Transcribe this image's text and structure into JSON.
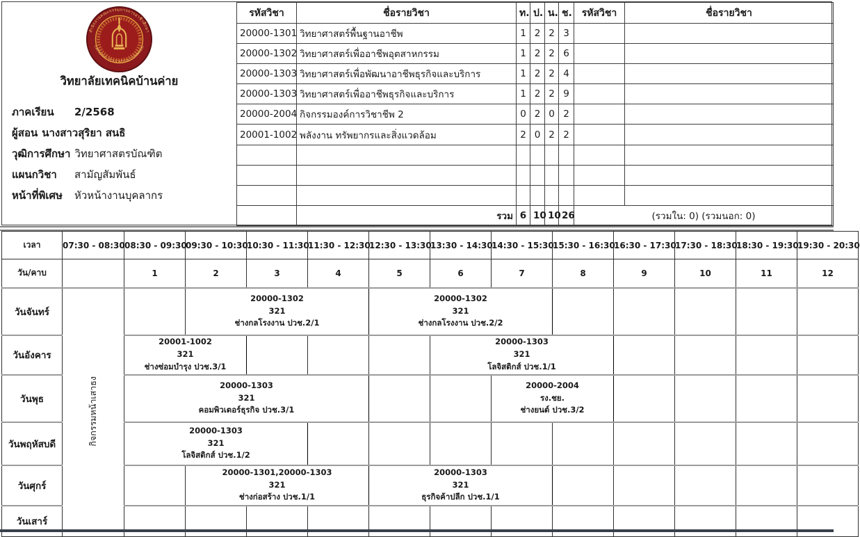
{
  "header": {
    "college_name": "วิทยาลัยเทคนิคบ้านค่าย",
    "logo": {
      "top_text": "สำนักงานคณะกรรมการการอาชีวศึกษา",
      "bottom_text": "VOCATIONAL EDUCATION COMMISSION"
    },
    "info": [
      {
        "label": "ภาคเรียน",
        "value": "2/2568"
      },
      {
        "label": "ผู้สอน",
        "value": "นางสาวสุริยา  สนธิ"
      },
      {
        "label": "วุฒิการศึกษา",
        "value": "วิทยาศาสตรบัณฑิต"
      },
      {
        "label": "แผนกวิชา",
        "value": "สามัญสัมพันธ์"
      },
      {
        "label": "หน้าที่พิเศษ",
        "value": "หัวหน้างานบุคลากร"
      }
    ]
  },
  "course_table": {
    "headers": {
      "code": "รหัสวิชา",
      "name": "ชื่อรายวิชา",
      "t": "ท.",
      "p": "ป.",
      "n": "น.",
      "ch": "ช.",
      "code2": "รหัสวิชา",
      "name2": "ชื่อรายวิชา"
    },
    "rows": [
      {
        "code": "20000-1301",
        "name": "วิทยาศาสตร์พื้นฐานอาชีพ",
        "t": "1",
        "p": "2",
        "n": "2",
        "ch": "3"
      },
      {
        "code": "20000-1302",
        "name": "วิทยาศาสตร์เพื่ออาชีพอุตสาหกรรม",
        "t": "1",
        "p": "2",
        "n": "2",
        "ch": "6"
      },
      {
        "code": "20000-1303",
        "name": "วิทยาศาสตร์เพื่อพัฒนาอาชีพธุรกิจและบริการ",
        "t": "1",
        "p": "2",
        "n": "2",
        "ch": "4"
      },
      {
        "code": "20000-1303",
        "name": "วิทยาศาสตร์เพื่ออาชีพธุรกิจและบริการ",
        "t": "1",
        "p": "2",
        "n": "2",
        "ch": "9"
      },
      {
        "code": "20000-2004",
        "name": "กิจกรรมองค์การวิชาชีพ 2",
        "t": "0",
        "p": "2",
        "n": "0",
        "ch": "2"
      },
      {
        "code": "20001-1002",
        "name": "พลังงาน ทรัพยากรและสิ่งแวดล้อม",
        "t": "2",
        "p": "0",
        "n": "2",
        "ch": "2"
      }
    ],
    "empty_row_count": 3,
    "total": {
      "label": "รวม",
      "t": "6",
      "p": "10",
      "n": "10",
      "ch": "26",
      "note": "(รวมใน: 0) (รวมนอก: 0)"
    }
  },
  "timetable": {
    "time_label": "เวลา",
    "day_period_label": "วัน/คาบ",
    "flag_activity": "กิจกรรมหน้าเสาธง",
    "time_slots": [
      "07:30 - 08:30",
      "08:30 - 09:30",
      "09:30 - 10:30",
      "10:30 - 11:30",
      "11:30 - 12:30",
      "12:30 - 13:30",
      "13:30 - 14:30",
      "14:30 - 15:30",
      "15:30 - 16:30",
      "16:30 - 17:30",
      "17:30 - 18:30",
      "18:30 - 19:30",
      "19:30 - 20:30"
    ],
    "periods": [
      "1",
      "2",
      "3",
      "4",
      "5",
      "6",
      "7",
      "8",
      "9",
      "10",
      "11",
      "12"
    ],
    "days": [
      {
        "name": "วันจันทร์",
        "blocks": [
          {
            "start": 2,
            "span": 3,
            "code": "20000-1302",
            "room": "321",
            "group": "ช่างกลโรงงาน ปวช.2/1"
          },
          {
            "start": 5,
            "span": 3,
            "code": "20000-1302",
            "room": "321",
            "group": "ช่างกลโรงงาน ปวช.2/2"
          }
        ]
      },
      {
        "name": "วันอังคาร",
        "blocks": [
          {
            "start": 1,
            "span": 2,
            "code": "20001-1002",
            "room": "321",
            "group": "ช่างซ่อมบำรุง ปวช.3/1"
          },
          {
            "start": 6,
            "span": 3,
            "code": "20000-1303",
            "room": "321",
            "group": "โลจิสติกส์ ปวช.1/1"
          }
        ]
      },
      {
        "name": "วันพุธ",
        "blocks": [
          {
            "start": 1,
            "span": 4,
            "code": "20000-1303",
            "room": "321",
            "group": "คอมพิวเตอร์ธุรกิจ ปวช.3/1"
          },
          {
            "start": 7,
            "span": 2,
            "code": "20000-2004",
            "room": "รง.ชย.",
            "group": "ช่างยนต์ ปวช.3/2"
          }
        ]
      },
      {
        "name": "วันพฤหัสบดี",
        "blocks": [
          {
            "start": 1,
            "span": 3,
            "code": "20000-1303",
            "room": "321",
            "group": "โลจิสติกส์ ปวช.1/2"
          }
        ]
      },
      {
        "name": "วันศุกร์",
        "blocks": [
          {
            "start": 2,
            "span": 3,
            "code": "20000-1301,20000-1303",
            "room": "321",
            "group": "ช่างก่อสร้าง ปวช.1/1"
          },
          {
            "start": 5,
            "span": 3,
            "code": "20000-1303",
            "room": "321",
            "group": "ธุรกิจค้าปลีก ปวช.1/1"
          }
        ]
      },
      {
        "name": "วันเสาร์",
        "blocks": []
      }
    ]
  },
  "colors": {
    "seal_red": "#8c191d",
    "seal_dark_ring": "#5c1013",
    "seal_gold": "#e0a33c",
    "bottom_bar": "#39404d",
    "grid_line": "#2e2e2e",
    "day_separator": "#9b9b9b"
  }
}
